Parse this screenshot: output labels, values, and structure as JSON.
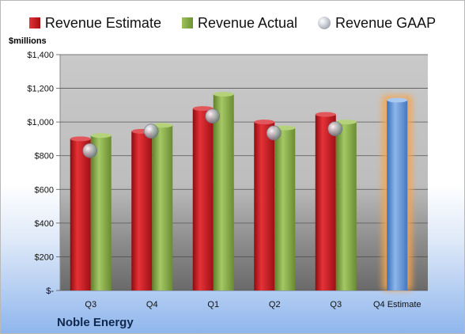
{
  "legend": {
    "estimate_label": "Revenue Estimate",
    "actual_label": "Revenue Actual",
    "gaap_label": "Revenue GAAP"
  },
  "units_label": "$millions",
  "company_label": "Noble Energy",
  "colors": {
    "estimate": "#c0161b",
    "actual": "#7ea13e",
    "gaap": "#a9adb6",
    "forecast": "#5a8fd6",
    "forecast_glow": "#f6a54b"
  },
  "chart_data": {
    "type": "bar",
    "categories": [
      "Q3",
      "Q4",
      "Q1",
      "Q2",
      "Q3",
      "Q4 Estimate"
    ],
    "series": [
      {
        "name": "Revenue Estimate",
        "values": [
          900,
          945,
          1080,
          1000,
          1045,
          1130
        ]
      },
      {
        "name": "Revenue Actual",
        "values": [
          920,
          980,
          1165,
          965,
          1000,
          null
        ]
      },
      {
        "name": "Revenue GAAP",
        "values": [
          830,
          945,
          1035,
          935,
          960,
          null
        ]
      }
    ],
    "ylabel": "$millions",
    "ylim": [
      0,
      1400
    ],
    "yticks": [
      0,
      200,
      400,
      600,
      800,
      1000,
      1200,
      1400
    ],
    "ytick_labels": [
      "$-",
      "$200",
      "$400",
      "$600",
      "$800",
      "$1,000",
      "$1,200",
      "$1,400"
    ],
    "grid": true,
    "legend_position": "top",
    "forecast_category": "Q4 Estimate"
  }
}
